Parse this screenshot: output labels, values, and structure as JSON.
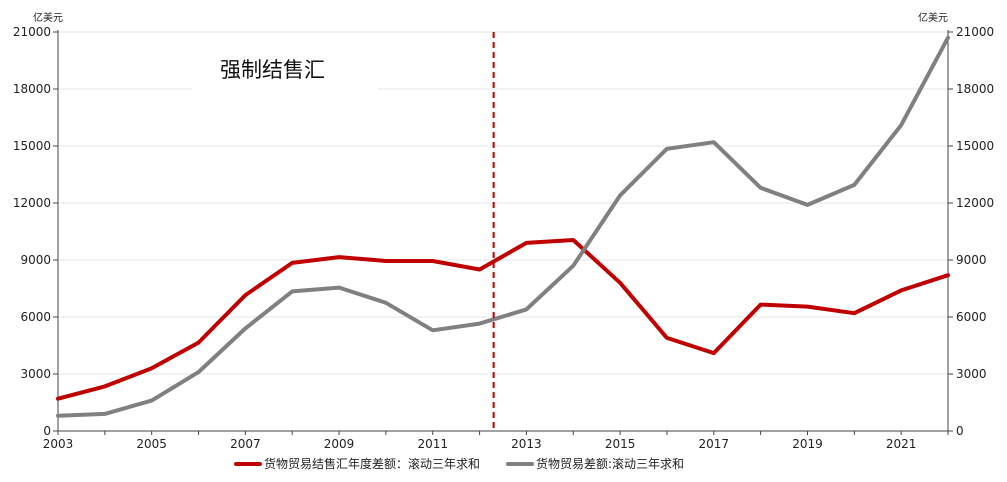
{
  "chart_data": {
    "type": "line",
    "title": "",
    "xlabel": "",
    "ylabel": "",
    "left_axis_unit": "亿美元",
    "right_axis_unit": "亿美元",
    "x_ticks": [
      "2003",
      "2005",
      "2007",
      "2009",
      "2011",
      "2013",
      "2015",
      "2017",
      "2019",
      "2021"
    ],
    "y_ticks": [
      "0",
      "3000",
      "6000",
      "9000",
      "12000",
      "15000",
      "18000",
      "21000"
    ],
    "y_range": [
      0,
      21000
    ],
    "x_range": [
      2003,
      2022
    ],
    "x": [
      2003,
      2004,
      2005,
      2006,
      2007,
      2008,
      2009,
      2010,
      2011,
      2012,
      2013,
      2014,
      2015,
      2016,
      2017,
      2018,
      2019,
      2020,
      2021,
      2022
    ],
    "series": [
      {
        "name": "货物贸易结售汇年度差额：滚动三年求和",
        "color": "#c00000",
        "values": [
          1700,
          2350,
          3300,
          4650,
          7150,
          8850,
          9150,
          8950,
          8950,
          8500,
          9900,
          10050,
          7800,
          4900,
          4100,
          6650,
          6550,
          6200,
          7400,
          8200
        ]
      },
      {
        "name": "货物贸易差额:滚动三年求和",
        "color": "#808080",
        "values": [
          800,
          900,
          1600,
          3100,
          5400,
          7350,
          7550,
          6750,
          5300,
          5650,
          6400,
          8700,
          12400,
          14850,
          15200,
          12800,
          11900,
          12950,
          16100,
          20700
        ]
      }
    ],
    "annotations": [
      {
        "text": "强制结售汇",
        "type": "label"
      },
      {
        "type": "vertical-dashed-line",
        "x": 2012.3,
        "color": "#c00000"
      }
    ],
    "grid": true,
    "legend": "bottom"
  }
}
